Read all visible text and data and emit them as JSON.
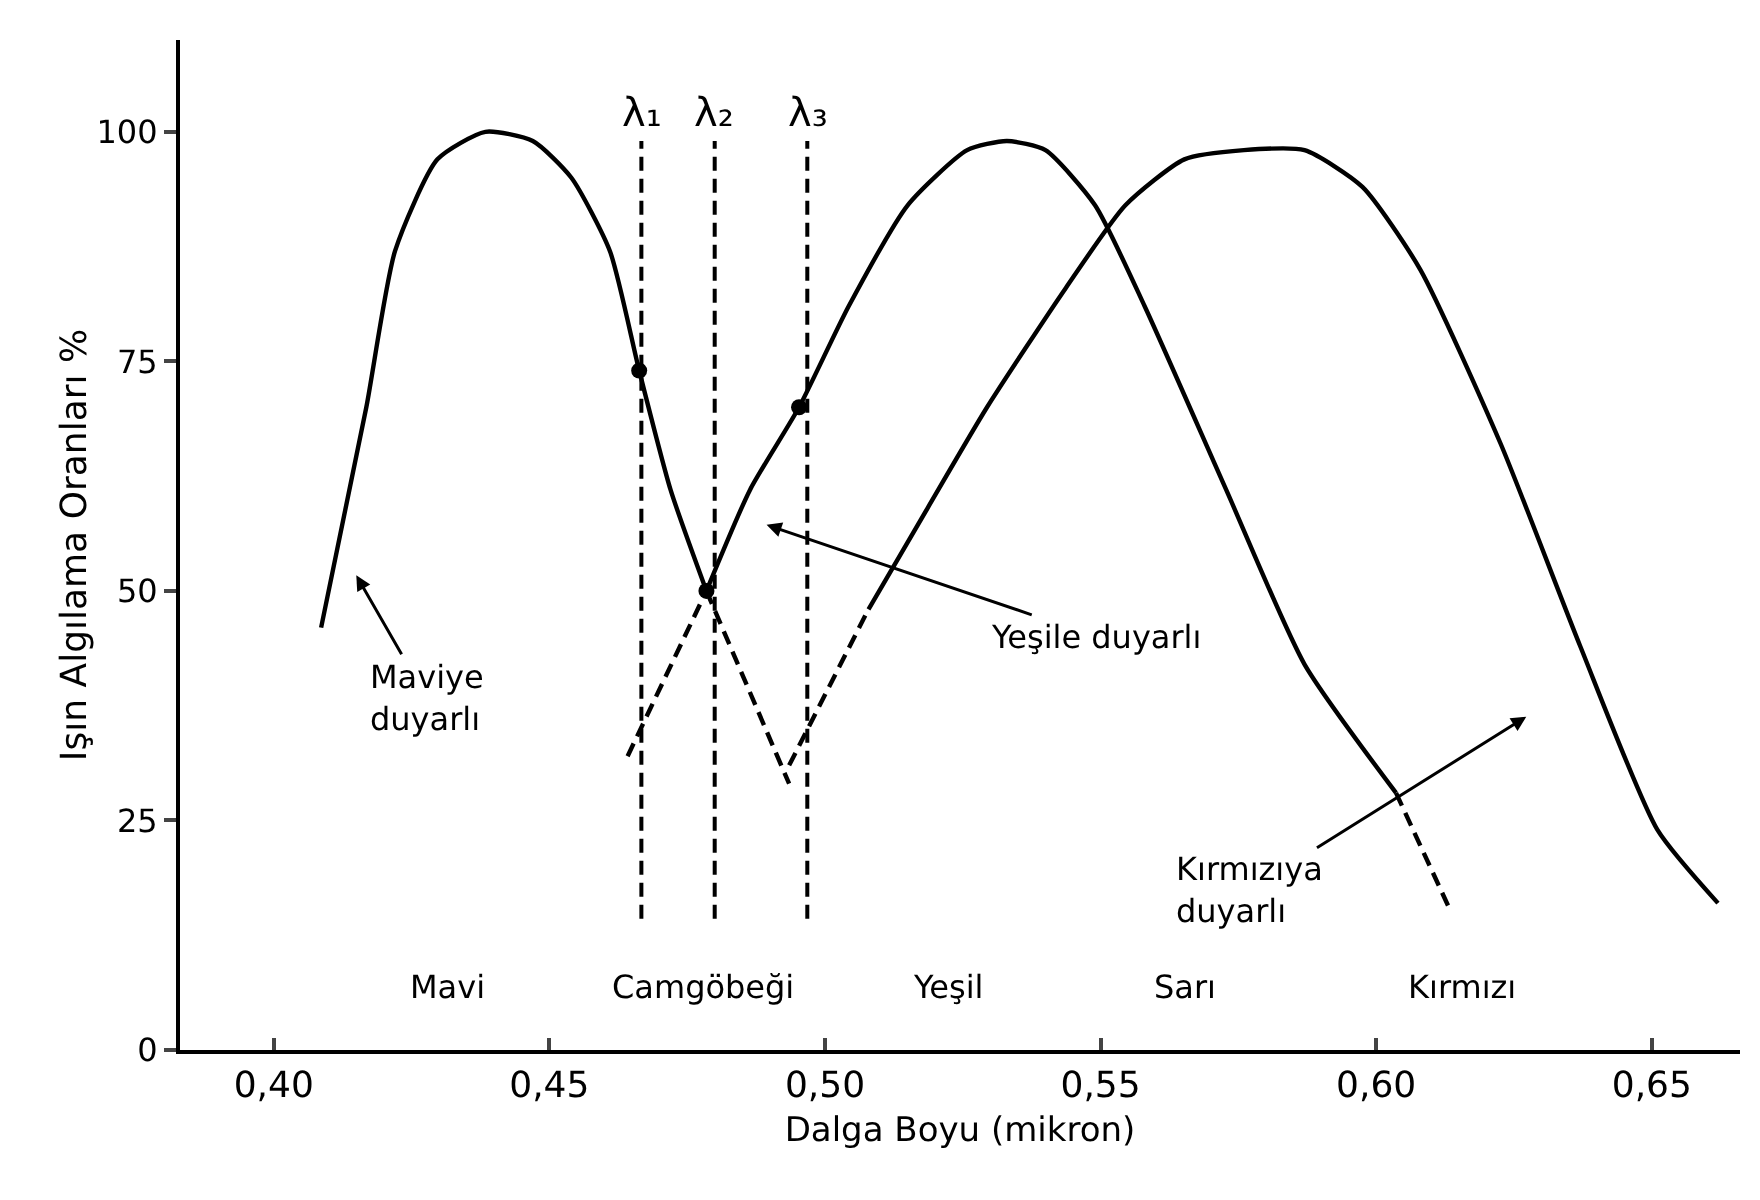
{
  "chart_data": {
    "type": "line",
    "xlabel": "Dalga Boyu (mikron)",
    "ylabel": "Işın Algılama Oranları %",
    "xlim": [
      0.383,
      0.666
    ],
    "ylim": [
      0,
      110
    ],
    "xticks": [
      {
        "value": 0.4,
        "label": "0,40"
      },
      {
        "value": 0.45,
        "label": "0,45"
      },
      {
        "value": 0.5,
        "label": "0,50"
      },
      {
        "value": 0.55,
        "label": "0,55"
      },
      {
        "value": 0.6,
        "label": "0,60"
      },
      {
        "value": 0.65,
        "label": "0,65"
      }
    ],
    "yticks": [
      0,
      25,
      50,
      75,
      100
    ],
    "grid": false,
    "marker": "none",
    "series": [
      {
        "color": "#000000",
        "line_style": "solid",
        "x": [
          0.4086,
          0.4168,
          0.422,
          0.4297,
          0.4384,
          0.447,
          0.454,
          0.461,
          0.4663,
          0.472,
          0.4785
        ],
        "values": [
          46,
          70,
          87,
          97,
          100,
          99,
          95,
          87,
          74,
          61,
          50
        ]
      },
      {
        "color": "#000000",
        "line_style": "dashed",
        "x": [
          0.4785,
          0.4935
        ],
        "values": [
          50,
          29
        ]
      },
      {
        "color": "#000000",
        "line_style": "dashed",
        "x": [
          0.4642,
          0.4785
        ],
        "values": [
          32,
          50
        ]
      },
      {
        "color": "#000000",
        "line_style": "solid",
        "x": [
          0.4785,
          0.4864,
          0.4953,
          0.5043,
          0.515,
          0.5258,
          0.533,
          0.54,
          0.549,
          0.558,
          0.5728,
          0.587,
          0.6036
        ],
        "values": [
          50,
          61,
          70,
          81,
          92,
          98,
          99,
          98,
          92,
          81,
          61,
          42,
          28
        ]
      },
      {
        "color": "#000000",
        "line_style": "dashed",
        "x": [
          0.6036,
          0.6136
        ],
        "values": [
          28,
          15
        ]
      },
      {
        "color": "#000000",
        "line_style": "dashed",
        "x": [
          0.4935,
          0.5079
        ],
        "values": [
          31,
          48
        ]
      },
      {
        "color": "#000000",
        "line_style": "solid",
        "x": [
          0.5079,
          0.5186,
          0.5294,
          0.5437,
          0.5545,
          0.5652,
          0.576,
          0.587,
          0.5975,
          0.608,
          0.6226,
          0.637,
          0.651,
          0.662
        ],
        "values": [
          48,
          59,
          70,
          83,
          92,
          97,
          98,
          98,
          94,
          85,
          66,
          44,
          24,
          16
        ]
      },
      {
        "type": "scatter",
        "marker": "circle",
        "color": "#000000",
        "x": [
          0.4663,
          0.4785,
          0.4953
        ],
        "values": [
          74,
          50,
          70
        ]
      }
    ],
    "ref_lines": [
      {
        "axis": "x",
        "value": 0.4667,
        "label": "λ₁",
        "line_style": "dashed"
      },
      {
        "axis": "x",
        "value": 0.48,
        "label": "λ₂",
        "line_style": "dashed"
      },
      {
        "axis": "x",
        "value": 0.4968,
        "label": "λ₃",
        "line_style": "dashed"
      }
    ],
    "annotations": [
      "Maviye\nduyarlı",
      "Yeşile duyarlı",
      "Kırmızıya\nduyarlı",
      "Mavi",
      "Camgöbeği",
      "Yeşil",
      "Sarı",
      "Kırmızı"
    ]
  }
}
